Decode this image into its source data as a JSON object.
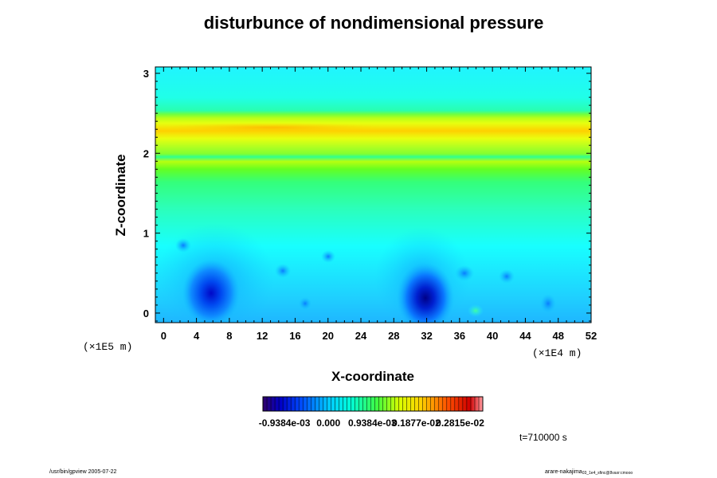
{
  "chart_data": {
    "type": "heatmap",
    "title": "disturbunce of nondimensional pressure",
    "xlabel": "X-coordinate",
    "ylabel": "Z-coordinate",
    "xunit": "(×1E4 m)",
    "yunit": "(×1E5 m)",
    "xlim": [
      -1,
      52
    ],
    "ylim": [
      -0.12,
      3.08
    ],
    "xticks": [
      "0",
      "4",
      "8",
      "12",
      "16",
      "20",
      "24",
      "28",
      "32",
      "36",
      "40",
      "44",
      "48",
      "52"
    ],
    "yticks": [
      "0",
      "1",
      "2",
      "3"
    ],
    "xtick_values": [
      0,
      4,
      8,
      12,
      16,
      20,
      24,
      28,
      32,
      36,
      40,
      44,
      48,
      52
    ],
    "ytick_values": [
      0,
      1,
      2,
      3
    ],
    "colorbar_labels": [
      "-0.9384e-03",
      "0.000",
      "0.9384e-03",
      "0.1877e-02",
      "0.2815e-02"
    ],
    "colorbar_range": [
      -0.0014,
      0.0033
    ],
    "time_label": "t=710000 s",
    "features": {
      "horizontal_bands": [
        {
          "z": 2.3,
          "level": "yellow-orange"
        },
        {
          "z": 2.0,
          "level": "green-yellow"
        },
        {
          "z": 2.52,
          "level": "green"
        }
      ],
      "minima": [
        {
          "x": 5.5,
          "z": 0.25,
          "level": "dark-blue"
        },
        {
          "x": 32,
          "z": 0.2,
          "level": "dark-navy"
        }
      ]
    }
  },
  "footer": {
    "left": "/usr/bin/gpview 2005-07-22",
    "right": "arare-nakajima",
    "right_sub": "03_1e4_sfinc@8vaxr:cmooo"
  }
}
